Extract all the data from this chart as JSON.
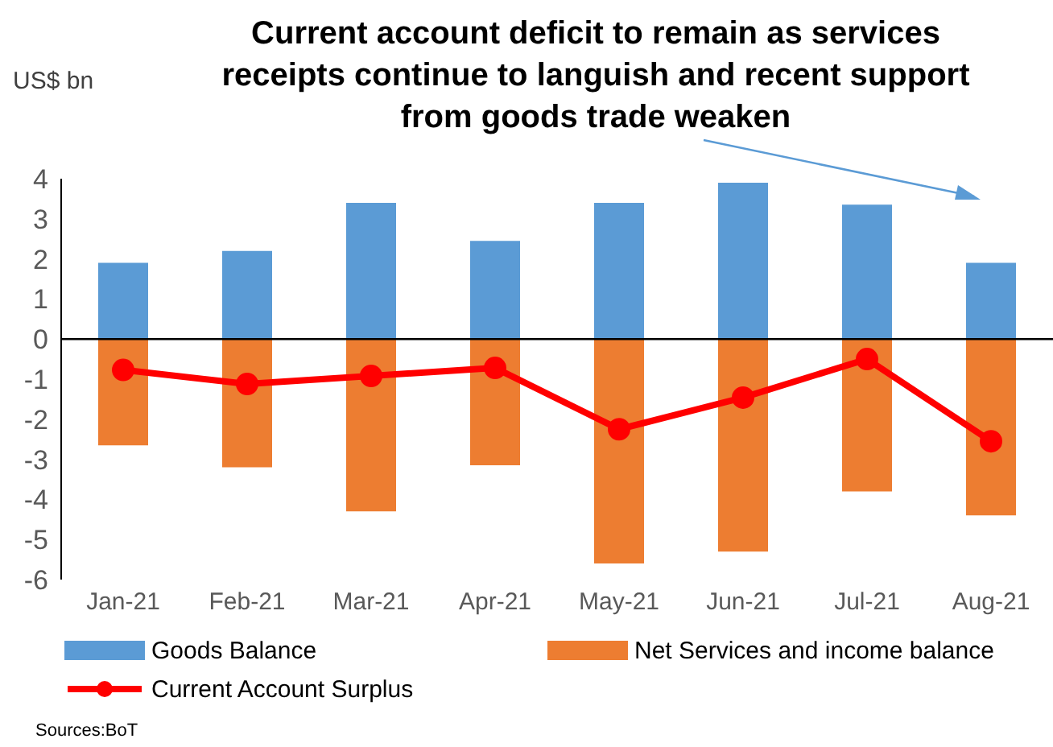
{
  "chart_data": {
    "type": "bar",
    "title": "Current account deficit to remain as services receipts continue to languish and recent support from goods trade weaken",
    "ylabel": "US$ bn",
    "annotations": [
      "Sources:BoT"
    ],
    "categories": [
      "Jan-21",
      "Feb-21",
      "Mar-21",
      "Apr-21",
      "May-21",
      "Jun-21",
      "Jul-21",
      "Aug-21"
    ],
    "series": [
      {
        "name": "Goods Balance",
        "color": "#5b9bd5",
        "values": [
          1.9,
          2.2,
          3.4,
          2.45,
          3.4,
          3.9,
          3.35,
          1.9
        ]
      },
      {
        "name": "Net Services and income balance",
        "color": "#ed7d31",
        "values": [
          -2.65,
          -3.2,
          -4.3,
          -3.15,
          -5.6,
          -5.3,
          -3.8,
          -4.4
        ]
      },
      {
        "name": "Current Account Surplus",
        "type": "line",
        "color": "#ff0000",
        "marker": "circle",
        "values": [
          -0.77,
          -1.12,
          -0.92,
          -0.72,
          -2.25,
          -1.46,
          -0.5,
          -2.55
        ]
      }
    ],
    "stacked": true,
    "ylim": [
      -6,
      4
    ],
    "yticks": [
      -6,
      -5,
      -4,
      -3,
      -2,
      -1,
      0,
      1,
      2,
      3,
      4
    ],
    "ref_lines": [
      {
        "axis": "y",
        "value": 0,
        "color": "#000000"
      }
    ],
    "legend": "bottom"
  }
}
